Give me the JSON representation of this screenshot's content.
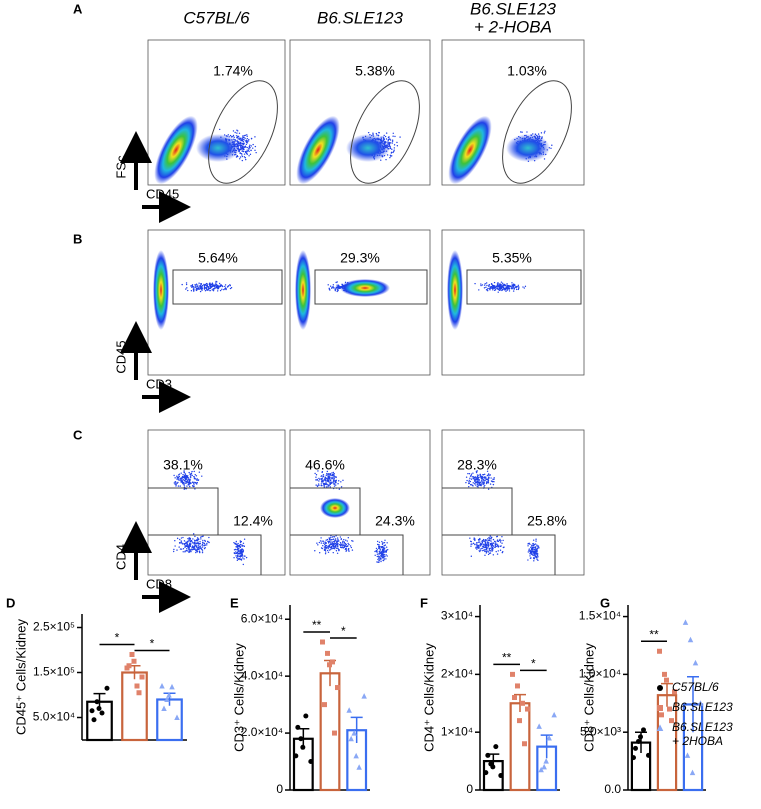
{
  "flow": {
    "panels": [
      "A",
      "B",
      "C"
    ],
    "columns": [
      [
        "C57BL/6"
      ],
      [
        "B6.SLE123"
      ],
      [
        "B6.SLE123",
        "+ 2-HOBA"
      ]
    ],
    "rows": [
      {
        "gates": [
          [
            "1.74%"
          ],
          [
            "5.38%"
          ],
          [
            "1.03%"
          ]
        ],
        "y_label": "FSc",
        "x_label": "CD45"
      },
      {
        "gates": [
          [
            "5.64%"
          ],
          [
            "29.3%"
          ],
          [
            "5.35%"
          ]
        ],
        "y_label": "CD45",
        "x_label": "CD3"
      },
      {
        "gates": [
          [
            "38.1%",
            "12.4%"
          ],
          [
            "46.6%",
            "24.3%"
          ],
          [
            "28.3%",
            "25.8%"
          ]
        ],
        "y_label": "CD4",
        "x_label": "CD8"
      }
    ]
  },
  "legend": [
    {
      "name": [
        "C57BL/6"
      ],
      "color": "#000000",
      "marker": "circle"
    },
    {
      "name": [
        "B6.SLE123"
      ],
      "color": "#e0826a",
      "marker": "square"
    },
    {
      "name": [
        "B6.SLE123",
        "+ 2HOBA"
      ],
      "color": "#8aa8f5",
      "marker": "triangle"
    }
  ],
  "chart_data": [
    {
      "type": "bar",
      "panel_label": "D",
      "ylabel": "CD45⁺ Cells/Kidney",
      "values": [
        85000,
        150000,
        90000
      ],
      "errors": [
        18000,
        15000,
        14000
      ],
      "points": [
        [
          65000,
          85000,
          60000,
          115000,
          45000,
          70000
        ],
        [
          160000,
          190000,
          120000,
          140000,
          165000,
          175000,
          105000
        ],
        [
          120000,
          90000,
          118000,
          50000,
          70000,
          100000
        ]
      ],
      "ylim": [
        0,
        280000
      ],
      "yticks": [
        {
          "value": 50000,
          "label": "5.0×10⁴"
        },
        {
          "value": 150000,
          "label": "1.5×10⁵"
        },
        {
          "value": 250000,
          "label": "2.5×10⁵"
        }
      ],
      "annotations": [
        "*",
        "*"
      ]
    },
    {
      "type": "bar",
      "panel_label": "E",
      "ylabel": "CD3⁺ Cells/Kidney",
      "values": [
        18000,
        41000,
        21000
      ],
      "errors": [
        3500,
        4500,
        4500
      ],
      "points": [
        [
          12000,
          18000,
          26000,
          10000,
          22000,
          15000
        ],
        [
          52000,
          48000,
          45000,
          36000,
          30000,
          44000,
          20000
        ],
        [
          28000,
          20000,
          8000,
          33000,
          18000,
          12000
        ]
      ],
      "ylim": [
        0,
        65000
      ],
      "yticks": [
        0,
        {
          "value": 20000,
          "label": "2.0×10⁴"
        },
        {
          "value": 40000,
          "label": "4.0×10⁴"
        },
        {
          "value": 60000,
          "label": "6.0×10⁴"
        }
      ],
      "annotations": [
        "**",
        "*"
      ]
    },
    {
      "type": "bar",
      "panel_label": "F",
      "ylabel": "CD4⁺ Cells/Kidney",
      "values": [
        5000,
        15000,
        7500
      ],
      "errors": [
        1200,
        1500,
        2000
      ],
      "points": [
        [
          3000,
          4500,
          7500,
          2500,
          6000,
          4000
        ],
        [
          20000,
          18000,
          15000,
          14000,
          16000,
          12000,
          8000
        ],
        [
          11000,
          4000,
          9000,
          13000,
          3500,
          5000
        ]
      ],
      "ylim": [
        0,
        32000
      ],
      "yticks": [
        0,
        {
          "value": 10000,
          "label": "1×10⁴"
        },
        {
          "value": 20000,
          "label": "2×10⁴"
        },
        {
          "value": 30000,
          "label": "3×10⁴"
        }
      ],
      "annotations": [
        "**",
        "*"
      ]
    },
    {
      "type": "bar",
      "panel_label": "G",
      "ylabel": "CD8⁺ Cells/Kidney",
      "values": [
        4100,
        8200,
        7400
      ],
      "errors": [
        900,
        1000,
        2400
      ],
      "points": [
        [
          2800,
          4200,
          5200,
          3000,
          3600,
          4600
        ],
        [
          12000,
          10000,
          7000,
          8500,
          6500,
          9500,
          6000
        ],
        [
          14500,
          13000,
          11000,
          7500,
          3000,
          1500
        ]
      ],
      "ylim": [
        0,
        16000
      ],
      "yticks": [
        {
          "value": 0,
          "label": "0.0"
        },
        {
          "value": 5000,
          "label": "5.0×10³"
        },
        {
          "value": 10000,
          "label": "1.0×10⁴"
        },
        {
          "value": 15000,
          "label": "1.5×10⁴"
        }
      ],
      "annotations": [
        "**"
      ]
    }
  ]
}
